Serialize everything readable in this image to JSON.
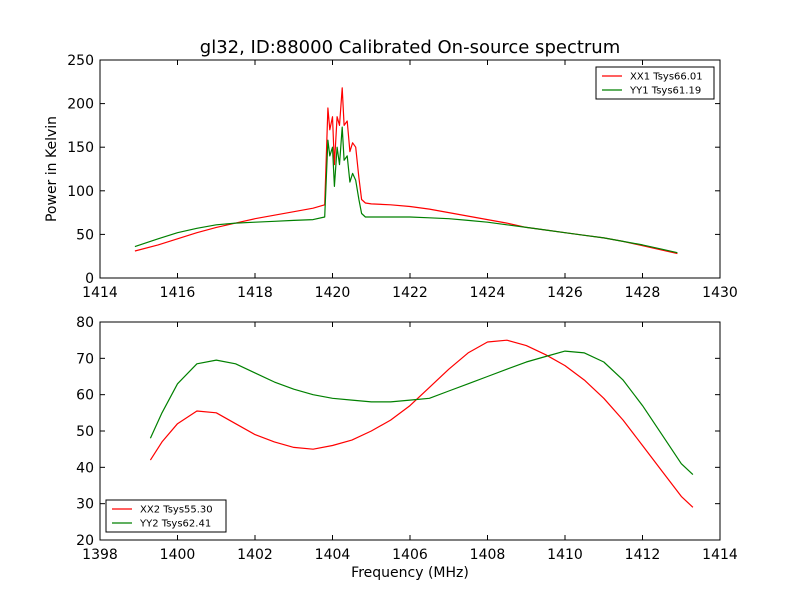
{
  "chart_data": [
    {
      "type": "line",
      "title": "gl32, ID:88000 Calibrated On-source spectrum",
      "xlabel": "",
      "ylabel": "Power in Kelvin",
      "xlim": [
        1414,
        1430
      ],
      "ylim": [
        0,
        250
      ],
      "xticks": [
        1414,
        1416,
        1418,
        1420,
        1422,
        1424,
        1426,
        1428,
        1430
      ],
      "yticks": [
        0,
        50,
        100,
        150,
        200,
        250
      ],
      "legend_position": "top-right",
      "grid": false,
      "series": [
        {
          "name": "XX1 Tsys66.01",
          "color": "#ff0000",
          "x": [
            1414.9,
            1415.5,
            1416,
            1416.5,
            1417,
            1417.5,
            1418,
            1418.5,
            1419,
            1419.5,
            1419.8,
            1419.88,
            1419.93,
            1420.0,
            1420.05,
            1420.12,
            1420.18,
            1420.25,
            1420.3,
            1420.38,
            1420.45,
            1420.52,
            1420.6,
            1420.68,
            1420.75,
            1420.85,
            1421,
            1421.5,
            1422,
            1422.5,
            1423,
            1423.5,
            1424,
            1424.5,
            1425,
            1425.5,
            1426,
            1426.5,
            1427,
            1427.5,
            1428,
            1428.5,
            1428.9
          ],
          "y": [
            31,
            38,
            45,
            52,
            58,
            63,
            68,
            72,
            76,
            80,
            84,
            195,
            170,
            185,
            130,
            185,
            175,
            218,
            175,
            180,
            145,
            155,
            150,
            115,
            90,
            86,
            85,
            84,
            82,
            79,
            75,
            71,
            67,
            63,
            58,
            55,
            52,
            49,
            46,
            42,
            37,
            32,
            28
          ]
        },
        {
          "name": "YY1 Tsys61.19",
          "color": "#008000",
          "x": [
            1414.9,
            1415.5,
            1416,
            1416.5,
            1417,
            1417.5,
            1418,
            1418.5,
            1419,
            1419.5,
            1419.8,
            1419.88,
            1419.93,
            1420.0,
            1420.05,
            1420.12,
            1420.18,
            1420.25,
            1420.3,
            1420.38,
            1420.45,
            1420.52,
            1420.6,
            1420.68,
            1420.75,
            1420.85,
            1421,
            1421.5,
            1422,
            1422.5,
            1423,
            1423.5,
            1424,
            1424.5,
            1425,
            1425.5,
            1426,
            1426.5,
            1427,
            1427.5,
            1428,
            1428.5,
            1428.9
          ],
          "y": [
            36,
            45,
            52,
            57,
            61,
            63,
            64,
            65,
            66,
            67,
            70,
            158,
            140,
            150,
            105,
            150,
            130,
            173,
            135,
            140,
            110,
            120,
            112,
            90,
            74,
            70,
            70,
            70,
            70,
            69,
            68,
            66,
            64,
            61,
            58,
            55,
            52,
            49,
            46,
            42,
            38,
            33,
            29
          ]
        }
      ]
    },
    {
      "type": "line",
      "title": "",
      "xlabel": "Frequency (MHz)",
      "ylabel": "",
      "xlim": [
        1398,
        1414
      ],
      "ylim": [
        20,
        80
      ],
      "xticks": [
        1398,
        1400,
        1402,
        1404,
        1406,
        1408,
        1410,
        1412,
        1414
      ],
      "yticks": [
        20,
        30,
        40,
        50,
        60,
        70,
        80
      ],
      "legend_position": "bottom-left",
      "grid": false,
      "series": [
        {
          "name": "XX2 Tsys55.30",
          "color": "#ff0000",
          "x": [
            1399.3,
            1399.6,
            1400,
            1400.5,
            1401,
            1401.5,
            1402,
            1402.5,
            1403,
            1403.5,
            1404,
            1404.5,
            1405,
            1405.5,
            1406,
            1406.5,
            1407,
            1407.5,
            1408,
            1408.5,
            1409,
            1409.5,
            1410,
            1410.5,
            1411,
            1411.5,
            1412,
            1412.5,
            1413,
            1413.3
          ],
          "y": [
            42,
            47,
            52,
            55.5,
            55,
            52,
            49,
            47,
            45.5,
            45,
            46,
            47.5,
            50,
            53,
            57,
            62,
            67,
            71.5,
            74.5,
            75,
            73.5,
            71,
            68,
            64,
            59,
            53,
            46,
            39,
            32,
            29
          ]
        },
        {
          "name": "YY2 Tsys62.41",
          "color": "#008000",
          "x": [
            1399.3,
            1399.6,
            1400,
            1400.5,
            1401,
            1401.5,
            1402,
            1402.5,
            1403,
            1403.5,
            1404,
            1404.5,
            1405,
            1405.5,
            1406,
            1406.5,
            1407,
            1407.5,
            1408,
            1408.5,
            1409,
            1409.5,
            1410,
            1410.5,
            1411,
            1411.5,
            1412,
            1412.5,
            1413,
            1413.3
          ],
          "y": [
            48,
            55,
            63,
            68.5,
            69.5,
            68.5,
            66,
            63.5,
            61.5,
            60,
            59,
            58.5,
            58,
            58,
            58.5,
            59,
            61,
            63,
            65,
            67,
            69,
            70.5,
            72,
            71.5,
            69,
            64,
            57,
            49,
            41,
            38
          ]
        }
      ]
    }
  ]
}
